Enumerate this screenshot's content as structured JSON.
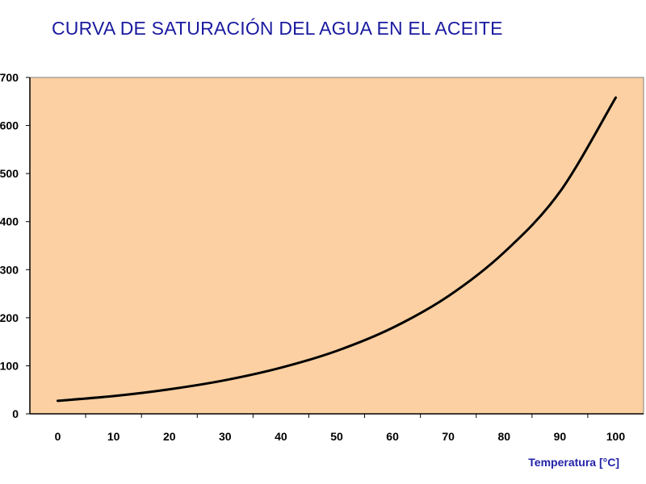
{
  "chart_data": {
    "type": "line",
    "title": "CURVA DE SATURACIÓN DEL AGUA EN EL ACEITE",
    "xlabel": "Temperatura [°C]",
    "ylabel": "",
    "x_ticks": [
      "0",
      "10",
      "20",
      "30",
      "40",
      "50",
      "60",
      "70",
      "80",
      "90",
      "100"
    ],
    "y_ticks": [
      "0",
      "100",
      "200",
      "300",
      "400",
      "500",
      "600",
      "700"
    ],
    "xlim": [
      -5,
      105
    ],
    "ylim": [
      0,
      700
    ],
    "grid": false,
    "plot_background": "#fcd0a2",
    "series": [
      {
        "color": "#000000",
        "x": [
          0,
          10,
          20,
          30,
          40,
          50,
          60,
          70,
          80,
          90,
          100
        ],
        "values": [
          27,
          37,
          51,
          70,
          96,
          131,
          179,
          245,
          336,
          462,
          658
        ]
      }
    ]
  }
}
